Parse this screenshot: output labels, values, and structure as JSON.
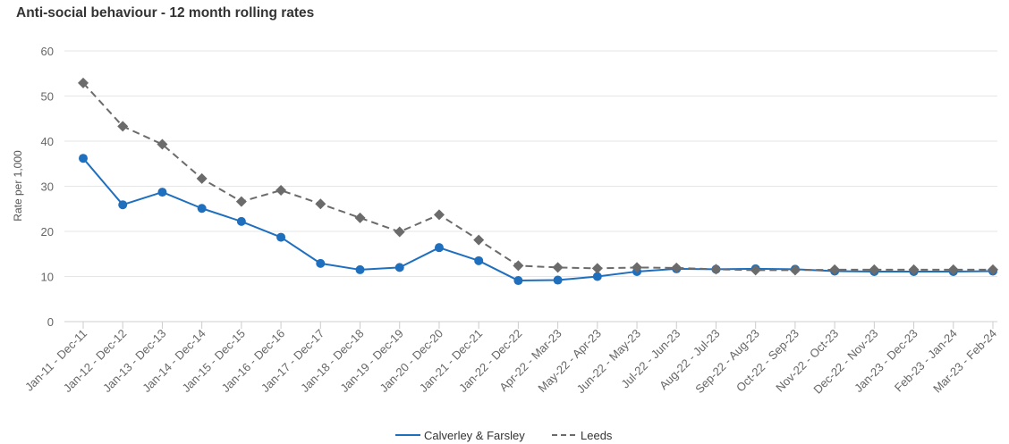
{
  "chart_data": {
    "type": "line",
    "title": "Anti-social behaviour - 12 month rolling rates",
    "xlabel": "",
    "ylabel": "Rate per 1,000",
    "ylim": [
      0,
      60
    ],
    "yticks": [
      0,
      10,
      20,
      30,
      40,
      50,
      60
    ],
    "grid": true,
    "legend_position": "bottom-center",
    "categories": [
      "Jan-11 - Dec-11",
      "Jan-12 - Dec-12",
      "Jan-13 - Dec-13",
      "Jan-14 - Dec-14",
      "Jan-15 - Dec-15",
      "Jan-16 - Dec-16",
      "Jan-17 - Dec-17",
      "Jan-18 - Dec-18",
      "Jan-19 - Dec-19",
      "Jan-20 - Dec-20",
      "Jan-21 - Dec-21",
      "Jan-22 - Dec-22",
      "Apr-22 - Mar-23",
      "May-22 - Apr-23",
      "Jun-22 - May-23",
      "Jul-22 - Jun-23",
      "Aug-22 - Jul-23",
      "Sep-22 - Aug-23",
      "Oct-22 - Sep-23",
      "Nov-22 - Oct-23",
      "Dec-22 - Nov-23",
      "Jan-23 - Dec-23",
      "Feb-23 - Jan-24",
      "Mar-23 - Feb-24"
    ],
    "series": [
      {
        "name": "Calverley & Farsley",
        "color": "#1f6fbf",
        "dash": "solid",
        "marker": "circle",
        "values": [
          36.2,
          25.9,
          28.7,
          25.1,
          22.2,
          18.7,
          12.9,
          11.5,
          12.0,
          16.4,
          13.5,
          9.1,
          9.2,
          10.0,
          11.1,
          11.7,
          11.6,
          11.7,
          11.6,
          11.2,
          11.1,
          11.1,
          11.1,
          11.2
        ]
      },
      {
        "name": "Leeds",
        "color": "#6b6b6b",
        "dash": "dashed",
        "marker": "diamond",
        "values": [
          52.9,
          43.3,
          39.3,
          31.7,
          26.6,
          29.1,
          26.1,
          23.0,
          19.9,
          23.7,
          18.1,
          12.4,
          12.0,
          11.8,
          12.0,
          11.9,
          11.6,
          11.4,
          11.4,
          11.5,
          11.5,
          11.5,
          11.5,
          11.5
        ]
      }
    ]
  }
}
